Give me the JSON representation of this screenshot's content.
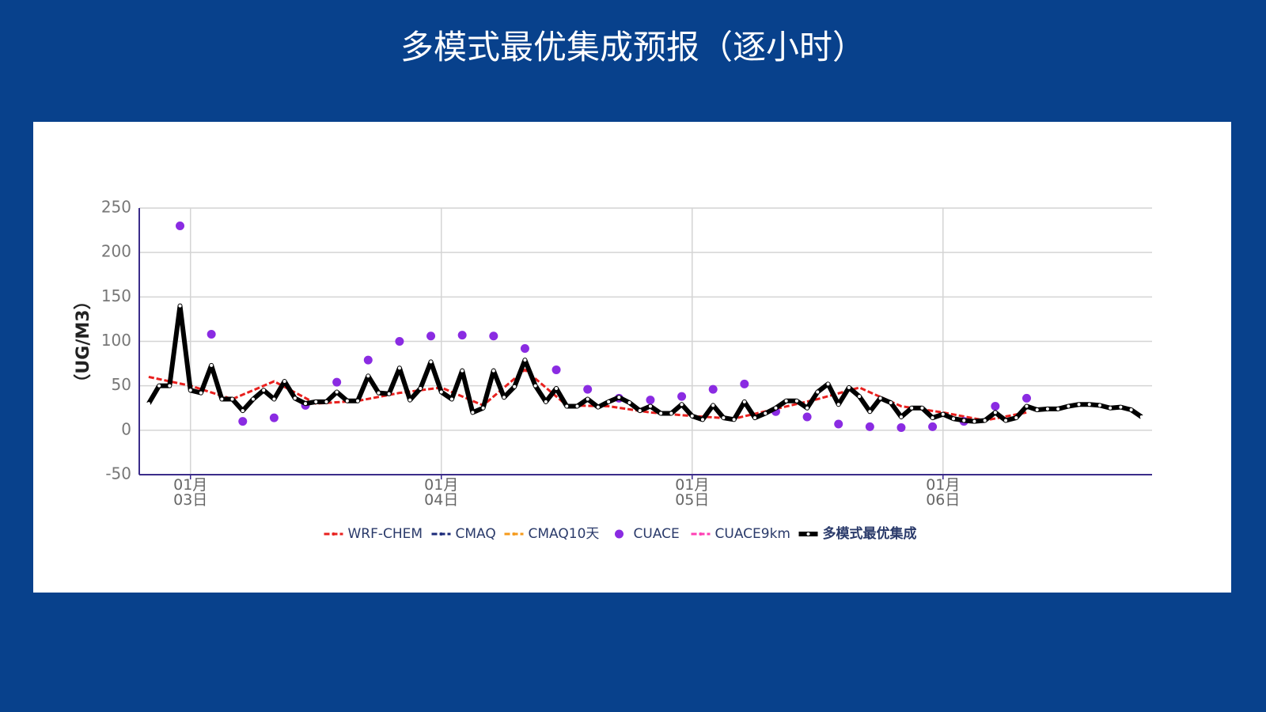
{
  "title": "多模式最优集成预报（逐小时）",
  "chart_data": {
    "type": "line",
    "ylabel": "（UG/M3）",
    "xlim": [
      -4.9,
      92
    ],
    "xticks": [
      {
        "value": 0,
        "label": "01月\n03日"
      },
      {
        "value": 24,
        "label": "01月\n04日"
      },
      {
        "value": 48,
        "label": "01月\n05日"
      },
      {
        "value": 72,
        "label": "01月\n06日"
      }
    ],
    "ylim": [
      -50,
      250
    ],
    "yticks": [
      -50,
      0,
      50,
      100,
      150,
      200,
      250
    ],
    "grid": true,
    "legend": "bottom",
    "series": [
      {
        "name": "WRF-CHEM",
        "color": "#e8201e",
        "mode": "lines",
        "x": [
          -4,
          0,
          4,
          8,
          12,
          16,
          20,
          24,
          28,
          32,
          36,
          40,
          44,
          48,
          52,
          56,
          60,
          64,
          68,
          72,
          76,
          80
        ],
        "values": [
          60,
          50,
          35,
          55,
          30,
          33,
          42,
          48,
          28,
          68,
          28,
          27,
          20,
          16,
          13,
          24,
          35,
          48,
          27,
          20,
          11,
          20
        ]
      },
      {
        "name": "CMAQ",
        "color": "#1b2a7a",
        "mode": "lines",
        "x": [],
        "values": []
      },
      {
        "name": "CMAQ10天",
        "color": "#f59a1b",
        "mode": "lines",
        "x": [],
        "values": []
      },
      {
        "name": "CUACE",
        "color": "#8a2be2",
        "mode": "markers",
        "x": [
          -1,
          2,
          5,
          8,
          11,
          14,
          17,
          20,
          23,
          26,
          29,
          32,
          35,
          38,
          41,
          44,
          47,
          50,
          53,
          56,
          59,
          62,
          65,
          68,
          71,
          74,
          77,
          80
        ],
        "values": [
          230,
          108,
          10,
          14,
          28,
          54,
          79,
          100,
          106,
          107,
          106,
          92,
          68,
          46,
          36,
          34,
          38,
          46,
          52,
          21,
          15,
          7,
          4,
          3,
          4,
          10,
          27,
          36
        ]
      },
      {
        "name": "CUACE9km",
        "color": "#ff3fb4",
        "mode": "lines",
        "x": [],
        "values": []
      },
      {
        "name": "多模式最优集成",
        "color": "#000000",
        "mode": "lines-markers",
        "x": [
          -4,
          -3,
          -2,
          -1,
          0,
          1,
          2,
          3,
          4,
          5,
          6,
          7,
          8,
          9,
          10,
          11,
          12,
          13,
          14,
          15,
          16,
          17,
          18,
          19,
          20,
          21,
          22,
          23,
          24,
          25,
          26,
          27,
          28,
          29,
          30,
          31,
          32,
          33,
          34,
          35,
          36,
          37,
          38,
          39,
          40,
          41,
          42,
          43,
          44,
          45,
          46,
          47,
          48,
          49,
          50,
          51,
          52,
          53,
          54,
          55,
          56,
          57,
          58,
          59,
          60,
          61,
          62,
          63,
          64,
          65,
          66,
          67,
          68,
          69,
          70,
          71,
          72,
          73,
          74,
          75,
          76,
          77,
          78,
          79,
          80,
          81,
          82,
          83,
          84,
          85,
          86,
          87,
          88,
          89,
          90,
          91
        ],
        "values": [
          30,
          50,
          50,
          140,
          45,
          42,
          73,
          35,
          35,
          22,
          35,
          45,
          35,
          55,
          36,
          30,
          32,
          32,
          43,
          33,
          33,
          61,
          42,
          41,
          70,
          34,
          47,
          77,
          43,
          35,
          67,
          20,
          25,
          67,
          37,
          49,
          79,
          50,
          32,
          47,
          27,
          27,
          35,
          26,
          32,
          37,
          31,
          22,
          27,
          19,
          19,
          29,
          16,
          12,
          28,
          14,
          12,
          32,
          14,
          19,
          25,
          33,
          33,
          25,
          43,
          52,
          29,
          48,
          38,
          21,
          36,
          31,
          15,
          25,
          25,
          14,
          18,
          13,
          11,
          10,
          11,
          20,
          11,
          14,
          27,
          23,
          24,
          24,
          27,
          29,
          29,
          28,
          25,
          26,
          23,
          15
        ]
      }
    ]
  }
}
